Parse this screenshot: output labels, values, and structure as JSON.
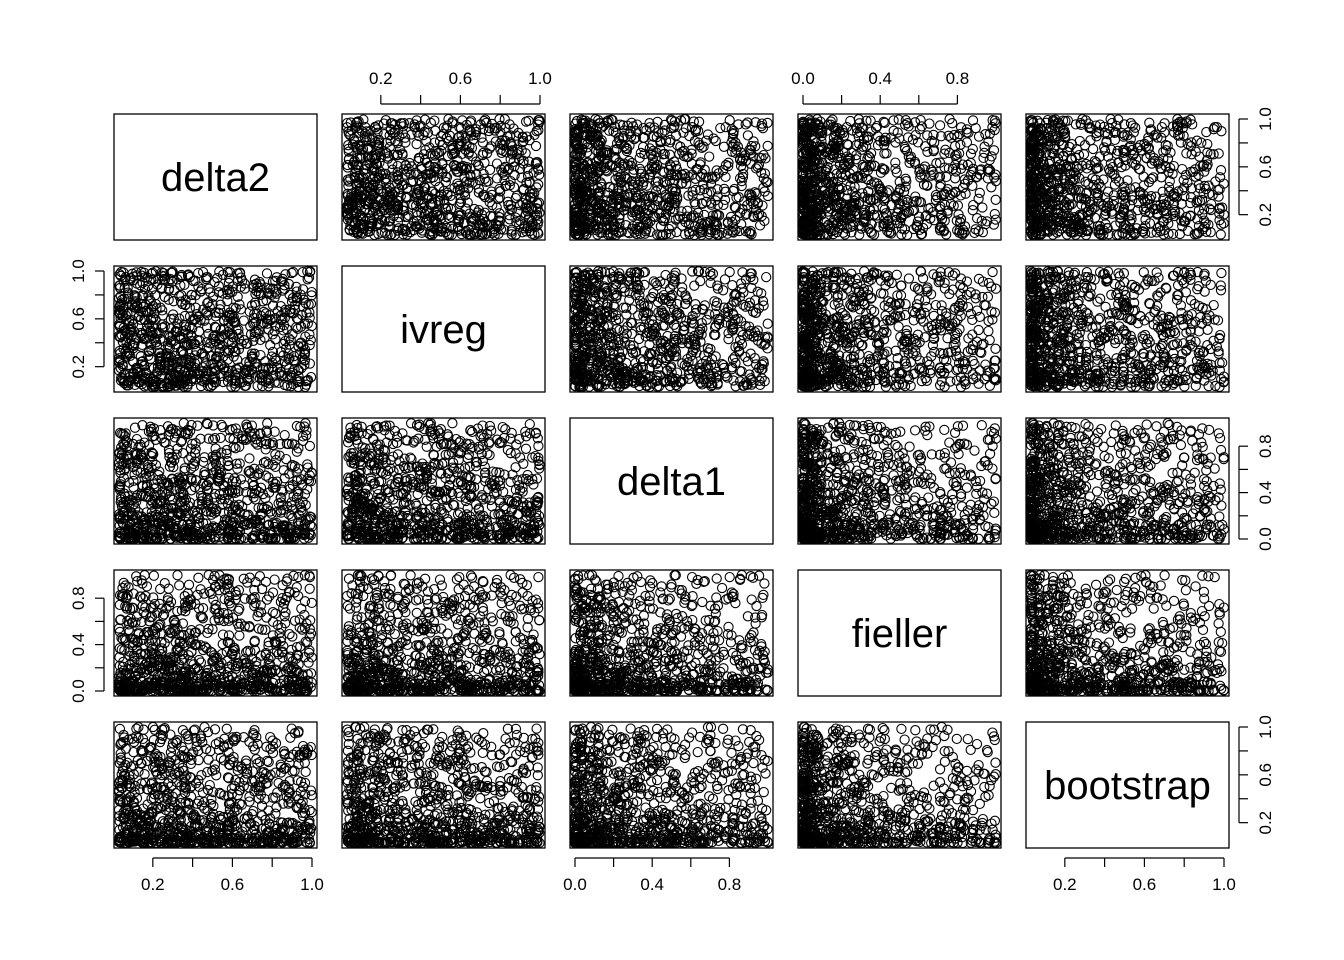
{
  "chart_data": {
    "type": "scatter",
    "kind": "pairs-matrix",
    "variables": [
      "delta2",
      "ivreg",
      "delta1",
      "fieller",
      "bootstrap"
    ],
    "point_symbol": "open-circle",
    "n_points_per_panel": 900,
    "ranges": {
      "delta2": [
        0.03,
        1.0
      ],
      "ivreg": [
        0.03,
        1.0
      ],
      "delta1": [
        0.0,
        1.0
      ],
      "fieller": [
        0.0,
        1.0
      ],
      "bootstrap": [
        0.03,
        1.0
      ]
    },
    "ticks": {
      "delta2": [
        0.2,
        0.4,
        0.6,
        0.8,
        1.0
      ],
      "ivreg": [
        0.2,
        0.4,
        0.6,
        0.8,
        1.0
      ],
      "delta1": [
        0.0,
        0.2,
        0.4,
        0.6,
        0.8
      ],
      "fieller": [
        0.0,
        0.2,
        0.4,
        0.6,
        0.8
      ],
      "bootstrap": [
        0.2,
        0.4,
        0.6,
        0.8,
        1.0
      ]
    },
    "tick_labels": {
      "delta2": [
        "0.2",
        "0.6",
        "1.0"
      ],
      "ivreg": [
        "0.2",
        "0.6",
        "1.0"
      ],
      "delta1": [
        "0.0",
        "0.4",
        "0.8"
      ],
      "fieller": [
        "0.0",
        "0.4",
        "0.8"
      ],
      "bootstrap": [
        "0.2",
        "0.6",
        "1.0"
      ]
    },
    "axes": {
      "top": [
        "ivreg",
        "fieller"
      ],
      "bottom": [
        "delta2",
        "delta1",
        "bootstrap"
      ],
      "left": [
        "ivreg",
        "fieller"
      ],
      "right": [
        "delta2",
        "delta1",
        "bootstrap"
      ]
    },
    "grid": false,
    "legend": "none"
  }
}
